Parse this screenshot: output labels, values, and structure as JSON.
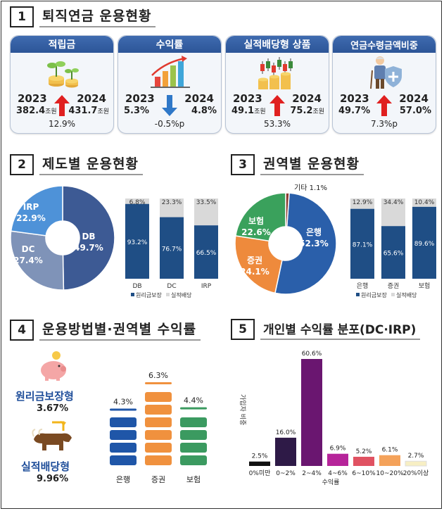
{
  "sections": {
    "s1": {
      "num": "1",
      "title": "퇴직연금 운용현황"
    },
    "s2": {
      "num": "2",
      "title": "제도별 운용현황"
    },
    "s3": {
      "num": "3",
      "title": "권역별 운용현황"
    },
    "s4": {
      "num": "4",
      "title": "운용방법별·권역별 수익률"
    },
    "s5": {
      "num": "5",
      "title": "개인별 수익률 분포(DC·IRP)"
    }
  },
  "cards": [
    {
      "title": "적립금",
      "y1": "2023",
      "y2": "2024",
      "v1": "382.4",
      "u1": "조원",
      "v2": "431.7",
      "u2": "조원",
      "change": "12.9%",
      "direction": "up"
    },
    {
      "title": "수익률",
      "y1": "2023",
      "y2": "2024",
      "v1": "5.3%",
      "u1": "",
      "v2": "4.8%",
      "u2": "",
      "change": "-0.5%p",
      "direction": "down"
    },
    {
      "title": "실적배당형 상품",
      "y1": "2023",
      "y2": "2024",
      "v1": "49.1",
      "u1": "조원",
      "v2": "75.2",
      "u2": "조원",
      "change": "53.3%",
      "direction": "up"
    },
    {
      "title": "연금수령금액비중",
      "y1": "2023",
      "y2": "2024",
      "v1": "49.7%",
      "u1": "",
      "v2": "57.0%",
      "u2": "",
      "change": "7.3%p",
      "direction": "up"
    }
  ],
  "chart_data": [
    {
      "type": "pie",
      "id": "system-donut",
      "labels": [
        "DB",
        "DC",
        "IRP"
      ],
      "values": [
        49.7,
        27.4,
        22.9
      ],
      "display": [
        "49.7%",
        "27.4%",
        "22.9%"
      ],
      "colors": [
        "#3d5a94",
        "#7f93b8",
        "#4e92d8"
      ]
    },
    {
      "type": "bar",
      "id": "system-stacked",
      "categories": [
        "DB",
        "DC",
        "IRP"
      ],
      "series": [
        {
          "name": "원리금보장",
          "values": [
            93.2,
            76.7,
            66.5
          ],
          "labels": [
            "93.2%",
            "76.7%",
            "66.5%"
          ],
          "color": "#1f4e85"
        },
        {
          "name": "실적배당",
          "values": [
            6.8,
            23.3,
            33.5
          ],
          "labels": [
            "6.8%",
            "23.3%",
            "33.5%"
          ],
          "color": "#d9d9d9"
        }
      ],
      "legend": "bottom",
      "ylim": [
        0,
        100
      ]
    },
    {
      "type": "pie",
      "id": "sector-donut",
      "labels": [
        "은행",
        "증권",
        "보험",
        "기타"
      ],
      "values": [
        52.3,
        24.1,
        22.6,
        1.1
      ],
      "display": [
        "52.3%",
        "24.1%",
        "22.6%",
        "1.1%"
      ],
      "colors": [
        "#2a5faa",
        "#ee8a3c",
        "#3aa15c",
        "#8b3a2f"
      ]
    },
    {
      "type": "bar",
      "id": "sector-stacked",
      "categories": [
        "은행",
        "증권",
        "보험"
      ],
      "series": [
        {
          "name": "원리금보장",
          "values": [
            87.1,
            65.6,
            89.6
          ],
          "labels": [
            "87.1%",
            "65.6%",
            "89.6%"
          ],
          "color": "#1f4e85"
        },
        {
          "name": "실적배당",
          "values": [
            12.9,
            34.4,
            10.4
          ],
          "labels": [
            "12.9%",
            "34.4%",
            "10.4%"
          ],
          "color": "#d9d9d9"
        }
      ],
      "legend": "bottom",
      "ylim": [
        0,
        100
      ]
    },
    {
      "type": "bar",
      "id": "method-returns",
      "labels": [
        "원리금보장형",
        "실적배당형"
      ],
      "values": [
        3.67,
        9.96
      ],
      "display": [
        "3.67%",
        "9.96%"
      ]
    },
    {
      "type": "bar",
      "id": "sector-returns",
      "categories": [
        "은행",
        "증권",
        "보험"
      ],
      "values": [
        4.3,
        6.3,
        4.4
      ],
      "display": [
        "4.3%",
        "6.3%",
        "4.4%"
      ],
      "colors": [
        "#1f56a8",
        "#f0913e",
        "#3b9a60"
      ]
    },
    {
      "type": "bar",
      "id": "individual-dist",
      "categories": [
        "0%미만",
        "0~2%",
        "2~4%",
        "4~6%",
        "6~10%",
        "10~20%",
        "20%이상"
      ],
      "values": [
        2.5,
        16.0,
        60.6,
        6.9,
        5.2,
        6.1,
        2.7
      ],
      "display": [
        "2.5%",
        "16.0%",
        "60.6%",
        "6.9%",
        "5.2%",
        "6.1%",
        "2.7%"
      ],
      "colors": [
        "#111111",
        "#2e1a47",
        "#6a1670",
        "#b6249a",
        "#e05262",
        "#f4a25a",
        "#f7efc4"
      ],
      "xlabel": "수익률",
      "ylabel": "가입자 비중"
    }
  ]
}
